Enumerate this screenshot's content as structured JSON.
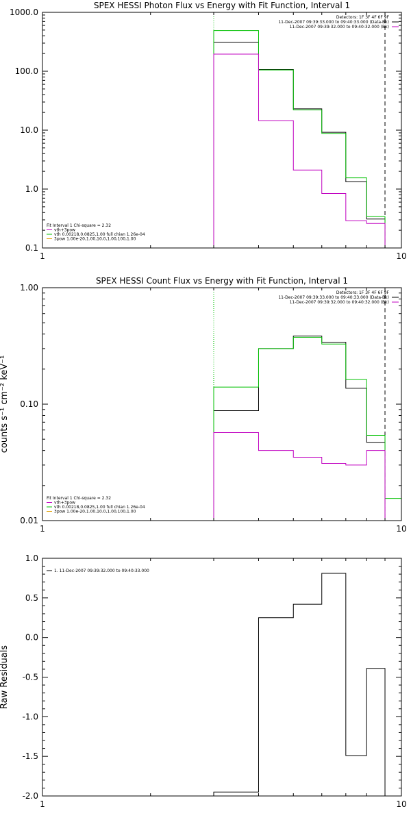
{
  "chart_data": [
    {
      "type": "line",
      "title": "SPEX HESSI Photon Flux vs Energy with Fit Function, Interval 1",
      "ylabel": "",
      "xlim": [
        1,
        10
      ],
      "ylim": [
        0.1,
        1000
      ],
      "xscale": "log",
      "yscale": "log",
      "xticks": [
        "1",
        "10"
      ],
      "yticks": [
        "0.1",
        "1.0",
        "10.0",
        "100.0",
        "1000.0"
      ],
      "vlines": [
        {
          "x": 3.0,
          "style": "dotted",
          "color": "#00c000"
        },
        {
          "x": 9.0,
          "style": "dashed",
          "color": "#000000"
        }
      ],
      "series": [
        {
          "color": "#000000",
          "edges": [
            3.0,
            4.0,
            5.0,
            6.0,
            7.0,
            8.0,
            9.0
          ],
          "values": [
            310,
            107,
            23,
            9.2,
            1.33,
            0.31
          ]
        },
        {
          "color": "#00c000",
          "edges": [
            3.0,
            4.0,
            5.0,
            6.0,
            7.0,
            8.0,
            9.0
          ],
          "values": [
            490,
            105,
            22,
            8.8,
            1.55,
            0.34
          ]
        },
        {
          "color": "#c000c0",
          "edges": [
            3.0,
            4.0,
            5.0,
            6.0,
            7.0,
            8.0,
            9.0
          ],
          "values": [
            195,
            14.5,
            2.1,
            0.84,
            0.29,
            0.26
          ]
        }
      ],
      "legend_right": {
        "position": "top-right",
        "lines": [
          "Detectors: 1F 3F 4F 6F 9F",
          "11-Dec-2007 09:39:33.000 to 09:40:33.000 (Data-Bk)",
          "11-Dec-2007 09:39:32.000 to 09:40:32.000 (Bk)"
        ],
        "colors": [
          "",
          "#000000",
          "#c000c0"
        ]
      },
      "legend_left": {
        "position": "bottom-left",
        "lines": [
          "Fit Interval 1   Chi-square = 2.32",
          "vth+3pow",
          "vth 0.00218,0.0825,1.00  full chian 1.26e-04",
          "3pow 1.00e-20,1.00,10.0,1.00,100,1.00"
        ],
        "colors": [
          "",
          "#c000c0",
          "#00c000",
          "#e0a000"
        ]
      }
    },
    {
      "type": "line",
      "title": "SPEX HESSI Count Flux vs Energy with Fit Function, Interval 1",
      "ylabel": "counts s⁻¹ cm⁻² keV⁻¹",
      "xlim": [
        1,
        10
      ],
      "ylim": [
        0.01,
        1
      ],
      "xscale": "log",
      "yscale": "log",
      "xticks": [
        "1",
        "10"
      ],
      "yticks": [
        "0.01",
        "0.10",
        "1.00"
      ],
      "vlines": [
        {
          "x": 3.0,
          "style": "dotted",
          "color": "#00c000"
        },
        {
          "x": 9.0,
          "style": "dashed",
          "color": "#000000"
        }
      ],
      "series": [
        {
          "color": "#000000",
          "edges": [
            3.0,
            4.0,
            5.0,
            6.0,
            7.0,
            8.0,
            9.0
          ],
          "values": [
            0.088,
            0.3,
            0.385,
            0.34,
            0.137,
            0.047
          ]
        },
        {
          "color": "#00c000",
          "edges": [
            3.0,
            4.0,
            5.0,
            6.0,
            7.0,
            8.0,
            9.0,
            10.0
          ],
          "values": [
            0.14,
            0.3,
            0.375,
            0.328,
            0.163,
            0.054,
            0.0155
          ]
        },
        {
          "color": "#c000c0",
          "edges": [
            3.0,
            4.0,
            5.0,
            6.0,
            7.0,
            8.0,
            9.0
          ],
          "values": [
            0.057,
            0.04,
            0.035,
            0.031,
            0.03,
            0.04
          ]
        }
      ],
      "legend_right": {
        "position": "top-right",
        "lines": [
          "Detectors: 1F 3F 4F 6F 9F",
          "11-Dec-2007 09:39:33.000 to 09:40:33.000 (Data-Bk)",
          "11-Dec-2007 09:39:32.000 to 09:40:32.000 (Bk)"
        ],
        "colors": [
          "",
          "#000000",
          "#c000c0"
        ]
      },
      "legend_left": {
        "position": "bottom-left",
        "lines": [
          "Fit Interval 1   Chi-square = 2.32",
          "vth+3pow",
          "vth 0.00218,0.0825,1.00  full chian 1.26e-04",
          "3pow 1.00e-20,1.00,10.0,1.00,100,1.00"
        ],
        "colors": [
          "",
          "#c000c0",
          "#00c000",
          "#e0a000"
        ]
      }
    },
    {
      "type": "line",
      "title": "",
      "ylabel": "Raw Residuals",
      "xlim": [
        1,
        10
      ],
      "ylim": [
        -2.0,
        1.0
      ],
      "xscale": "log",
      "yscale": "linear",
      "xticks": [
        "1",
        "10"
      ],
      "yticks": [
        "-2.0",
        "-1.5",
        "-1.0",
        "-0.5",
        "0.0",
        "0.5",
        "1.0"
      ],
      "vlines": [],
      "series": [
        {
          "color": "#000000",
          "edges": [
            3.0,
            4.0,
            5.0,
            6.0,
            7.0,
            8.0,
            9.0
          ],
          "values": [
            -1.95,
            0.25,
            0.42,
            0.81,
            -1.49,
            -0.39
          ]
        }
      ],
      "legend_left": {
        "position": "top-left",
        "lines": [
          "1. 11-Dec-2007 09:39:32.000 to 09:40:33.000"
        ],
        "colors": [
          "#000000"
        ]
      }
    }
  ]
}
